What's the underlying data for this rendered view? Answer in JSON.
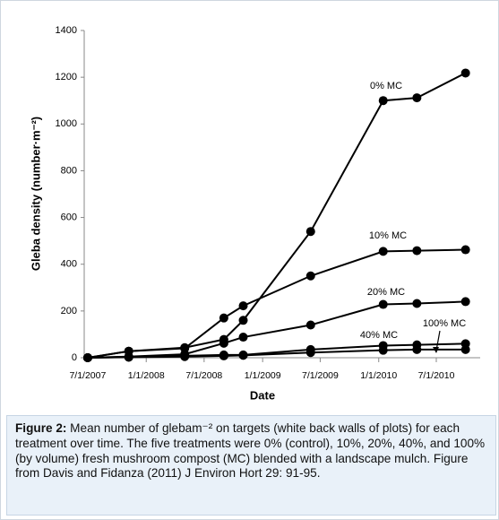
{
  "chart_data": {
    "type": "line",
    "x_label": "Date",
    "y_label": "Gleba density (number·m⁻²)",
    "x": [
      "2007-07-01",
      "2007-11-07",
      "2008-05-01",
      "2008-09-01",
      "2008-11-01",
      "2009-06-01",
      "2010-01-15",
      "2010-05-01",
      "2010-10-01"
    ],
    "series": [
      {
        "name": "0% MC",
        "color": "#000000",
        "values": [
          0,
          28,
          43,
          78,
          160,
          540,
          1100,
          1112,
          1218
        ]
      },
      {
        "name": "10% MC",
        "color": "#000000",
        "values": [
          0,
          28,
          40,
          170,
          222,
          350,
          455,
          458,
          462
        ]
      },
      {
        "name": "20% MC",
        "color": "#000000",
        "values": [
          0,
          5,
          15,
          62,
          88,
          140,
          228,
          232,
          240
        ]
      },
      {
        "name": "40% MC",
        "color": "#000000",
        "values": [
          0,
          3,
          8,
          12,
          12,
          35,
          52,
          55,
          60
        ]
      },
      {
        "name": "100% MC",
        "color": "#000000",
        "values": [
          0,
          2,
          5,
          8,
          10,
          22,
          32,
          35,
          35
        ]
      }
    ],
    "xlim": [
      "2007-06-20",
      "2010-11-16"
    ],
    "xticks": [
      {
        "value": "2007-07-01",
        "label": "7/1/2007"
      },
      {
        "value": "2008-01-01",
        "label": "1/1/2008"
      },
      {
        "value": "2008-07-01",
        "label": "7/1/2008"
      },
      {
        "value": "2009-01-01",
        "label": "1/1/2009"
      },
      {
        "value": "2009-07-01",
        "label": "7/1/2009"
      },
      {
        "value": "2010-01-01",
        "label": "1/1/2010"
      },
      {
        "value": "2010-07-01",
        "label": "7/1/2010"
      }
    ],
    "ylim": [
      0,
      1400
    ],
    "yticks": [
      0,
      200,
      400,
      600,
      800,
      1000,
      1200,
      1400
    ],
    "grid": false
  },
  "caption": {
    "label": "Figure 2:",
    "text": " Mean number of glebam⁻² on targets (white back walls of plots) for each treatment over time. The five treatments were 0% (control), 10%, 20%, 40%, and 100% (by volume) fresh mushroom compost (MC) blended with a landscape mulch. Figure from Davis and Fidanza (2011) J Environ Hort 29: 91-95."
  }
}
